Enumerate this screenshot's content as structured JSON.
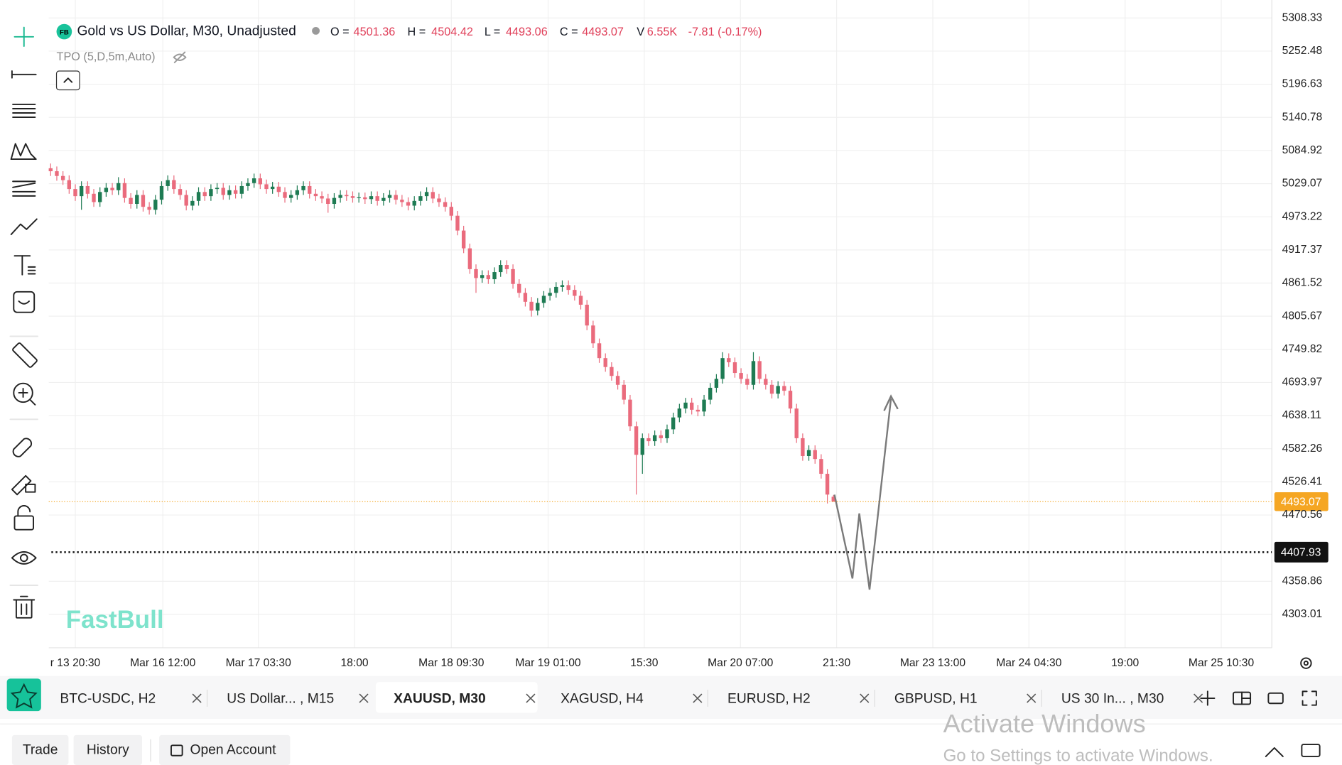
{
  "header": {
    "logo": "FB",
    "title": "Gold vs US Dollar, M30, Unadjusted",
    "ohlc": [
      {
        "label": "O =",
        "value": "4501.36"
      },
      {
        "label": "H =",
        "value": "4504.42"
      },
      {
        "label": "L =",
        "value": "4493.06"
      },
      {
        "label": "C =",
        "value": "4493.07"
      }
    ],
    "volume_label": "V",
    "volume": "6.55K",
    "change": "-7.81 (-0.17%)",
    "indicator": "TPO (5,D,5m,Auto)"
  },
  "watermark": "FastBull",
  "chart_data": {
    "type": "candlestick",
    "up_color": "#1e7b53",
    "down_color": "#ea6b7d",
    "grid": true,
    "ylim": [
      4246.8,
      5338.6
    ],
    "yticks": [
      5308.33,
      5252.48,
      5196.63,
      5140.78,
      5084.92,
      5029.07,
      4973.22,
      4917.37,
      4861.52,
      4805.67,
      4749.82,
      4693.97,
      4638.11,
      4582.26,
      4526.41,
      4470.56,
      4358.86,
      4303.01
    ],
    "xlim": [
      -0.3,
      198.1
    ],
    "xticks": [
      {
        "value": 4,
        "label": "r 13 20:30"
      },
      {
        "value": 18.2,
        "label": "Mar 16 12:00"
      },
      {
        "value": 33.7,
        "label": "Mar 17 03:30"
      },
      {
        "value": 49.3,
        "label": "18:00"
      },
      {
        "value": 65,
        "label": "Mar 18 09:30"
      },
      {
        "value": 80.7,
        "label": "Mar 19 01:00"
      },
      {
        "value": 96.3,
        "label": "15:30"
      },
      {
        "value": 111.9,
        "label": "Mar 20 07:00"
      },
      {
        "value": 127.5,
        "label": "21:30"
      },
      {
        "value": 143.1,
        "label": "Mar 23 13:00"
      },
      {
        "value": 158.7,
        "label": "Mar 24 04:30"
      },
      {
        "value": 174.3,
        "label": "19:00"
      },
      {
        "value": 189.9,
        "label": "Mar 25 10:30"
      }
    ],
    "open": [
      5055,
      5050,
      5042,
      5035,
      5020,
      5008,
      5025,
      5012,
      4998,
      5015,
      5022,
      5018,
      5030,
      5005,
      4995,
      5010,
      4990,
      4985,
      5002,
      5025,
      5035,
      5020,
      5010,
      4992,
      5000,
      5015,
      5008,
      5020,
      5022,
      5010,
      5018,
      5012,
      5025,
      5030,
      5038,
      5028,
      5020,
      5024,
      5015,
      5005,
      5010,
      5018,
      5025,
      5012,
      5008,
      5004,
      4995,
      5005,
      5010,
      5008,
      5005,
      5006,
      5003,
      5008,
      5000,
      5005,
      5010,
      5002,
      4998,
      4992,
      5000,
      5008,
      5015,
      5004,
      4998,
      4990,
      4975,
      4950,
      4920,
      4885,
      4870,
      4875,
      4868,
      4880,
      4892,
      4885,
      4860,
      4845,
      4830,
      4815,
      4828,
      4840,
      4845,
      4855,
      4858,
      4850,
      4840,
      4825,
      4790,
      4760,
      4735,
      4720,
      4705,
      4690,
      4665,
      4620,
      4572,
      4600,
      4595,
      4605,
      4600,
      4615,
      4635,
      4650,
      4660,
      4648,
      4645,
      4665,
      4685,
      4700,
      4735,
      4728,
      4710,
      4700,
      4690,
      4730,
      4700,
      4690,
      4675,
      4688,
      4680,
      4650,
      4600,
      4570,
      4580,
      4565,
      4540,
      4501.36
    ],
    "high": [
      5063,
      5058,
      5050,
      5043,
      5028,
      5033,
      5033,
      5020,
      5023,
      5030,
      5030,
      5040,
      5038,
      5013,
      5018,
      5018,
      4998,
      5010,
      5033,
      5043,
      5043,
      5028,
      5018,
      5008,
      5023,
      5023,
      5028,
      5030,
      5030,
      5026,
      5026,
      5033,
      5038,
      5046,
      5046,
      5036,
      5032,
      5032,
      5023,
      5018,
      5026,
      5033,
      5033,
      5020,
      5016,
      5012,
      5013,
      5018,
      5018,
      5016,
      5014,
      5014,
      5016,
      5016,
      5013,
      5018,
      5018,
      5010,
      5006,
      5008,
      5016,
      5023,
      5023,
      5012,
      5006,
      4998,
      4983,
      4958,
      4928,
      4893,
      4883,
      4883,
      4888,
      4900,
      4900,
      4893,
      4868,
      4853,
      4838,
      4836,
      4848,
      4853,
      4863,
      4866,
      4866,
      4858,
      4848,
      4833,
      4798,
      4768,
      4743,
      4728,
      4713,
      4698,
      4673,
      4628,
      4608,
      4608,
      4613,
      4613,
      4623,
      4643,
      4658,
      4668,
      4668,
      4656,
      4673,
      4693,
      4708,
      4745,
      4743,
      4736,
      4718,
      4708,
      4745,
      4738,
      4708,
      4698,
      4696,
      4696,
      4688,
      4658,
      4608,
      4588,
      4588,
      4573,
      4548,
      4504.42
    ],
    "low": [
      5042,
      5034,
      5027,
      5012,
      5000,
      4985,
      5004,
      4990,
      4990,
      5007,
      5010,
      5010,
      4997,
      4987,
      4987,
      4982,
      4977,
      4977,
      4994,
      5017,
      5012,
      5002,
      4984,
      4984,
      4992,
      5000,
      5000,
      5012,
      5002,
      5002,
      5004,
      5004,
      5017,
      5022,
      5020,
      5012,
      5012,
      5007,
      4997,
      4997,
      5002,
      5010,
      5004,
      5000,
      4996,
      4980,
      4987,
      4997,
      5000,
      4997,
      4997,
      4995,
      4995,
      4992,
      4992,
      4997,
      4994,
      4990,
      4984,
      4984,
      4992,
      5000,
      4996,
      4990,
      4982,
      4967,
      4942,
      4912,
      4877,
      4845,
      4862,
      4860,
      4860,
      4872,
      4877,
      4852,
      4837,
      4822,
      4805,
      4807,
      4820,
      4832,
      4837,
      4847,
      4842,
      4832,
      4817,
      4782,
      4752,
      4727,
      4712,
      4697,
      4682,
      4657,
      4612,
      4505,
      4540,
      4587,
      4587,
      4592,
      4592,
      4607,
      4627,
      4642,
      4640,
      4637,
      4637,
      4657,
      4677,
      4692,
      4720,
      4702,
      4692,
      4682,
      4682,
      4692,
      4682,
      4667,
      4667,
      4672,
      4642,
      4592,
      4562,
      4562,
      4557,
      4532,
      4490,
      4493.06
    ],
    "close": [
      5050,
      5042,
      5035,
      5020,
      5008,
      5025,
      5012,
      4998,
      5015,
      5022,
      5018,
      5030,
      5005,
      4995,
      5010,
      4990,
      4985,
      5002,
      5025,
      5035,
      5020,
      5010,
      4992,
      5000,
      5015,
      5008,
      5020,
      5022,
      5010,
      5018,
      5012,
      5025,
      5030,
      5038,
      5028,
      5020,
      5024,
      5015,
      5005,
      5010,
      5018,
      5025,
      5012,
      5008,
      5004,
      4995,
      5005,
      5010,
      5008,
      5005,
      5006,
      5003,
      5008,
      5000,
      5005,
      5010,
      5002,
      4998,
      4992,
      5000,
      5008,
      5015,
      5004,
      4998,
      4990,
      4975,
      4950,
      4920,
      4885,
      4870,
      4875,
      4868,
      4880,
      4892,
      4885,
      4860,
      4845,
      4830,
      4815,
      4828,
      4840,
      4845,
      4855,
      4858,
      4850,
      4840,
      4825,
      4790,
      4760,
      4735,
      4720,
      4705,
      4690,
      4665,
      4620,
      4572,
      4600,
      4595,
      4605,
      4600,
      4615,
      4635,
      4650,
      4660,
      4648,
      4645,
      4665,
      4685,
      4700,
      4735,
      4728,
      4710,
      4700,
      4690,
      4730,
      4700,
      4690,
      4675,
      4688,
      4680,
      4650,
      4600,
      4570,
      4580,
      4565,
      4540,
      4505,
      4493.07
    ],
    "last_price": {
      "value": 4493.07,
      "color": "#f5a623"
    },
    "alert_line": {
      "value": 4407.93,
      "color": "#111111"
    }
  },
  "tabs": {
    "active": 2,
    "items": [
      "BTC-USDC, H2",
      "US Dollar... , M15",
      "XAUUSD, M30",
      "XAGUSD, H4",
      "EURUSD, H2",
      "GBPUSD, H1",
      "US 30 In... , M30"
    ]
  },
  "bottom_bar": {
    "trade": "Trade",
    "history": "History",
    "open_account": "Open Account"
  },
  "os_notice": {
    "title": "Activate Windows",
    "subtitle": "Go to Settings to activate Windows."
  }
}
